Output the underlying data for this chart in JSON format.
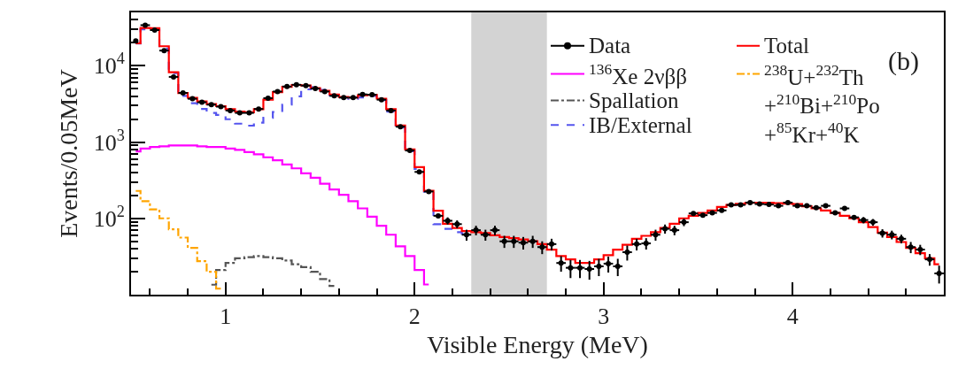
{
  "chart_data": {
    "type": "step",
    "xlabel": "Visible Energy (MeV)",
    "ylabel": "Events/0.05MeV",
    "annotations": [
      "(b)"
    ],
    "log": "y",
    "grid": false,
    "legend": "top right",
    "xlim": [
      0.5,
      4.8
    ],
    "xticks": [
      {
        "value": 0.6,
        "label": null
      },
      {
        "value": 0.8,
        "label": null
      },
      1,
      {
        "value": 1.2,
        "label": null
      },
      {
        "value": 1.4,
        "label": null
      },
      {
        "value": 1.6,
        "label": null
      },
      {
        "value": 1.8,
        "label": null
      },
      2,
      {
        "value": 2.2,
        "label": null
      },
      {
        "value": 2.4,
        "label": null
      },
      {
        "value": 2.6,
        "label": null
      },
      {
        "value": 2.8,
        "label": null
      },
      3,
      {
        "value": 3.2,
        "label": null
      },
      {
        "value": 3.4,
        "label": null
      },
      {
        "value": 3.6,
        "label": null
      },
      {
        "value": 3.8,
        "label": null
      },
      4,
      {
        "value": 4.2,
        "label": null
      },
      {
        "value": 4.4,
        "label": null
      },
      {
        "value": 4.6,
        "label": null
      }
    ],
    "ylim": [
      10,
      50000
    ],
    "yticks": [
      {
        "value": 20,
        "label": null
      },
      {
        "value": 30,
        "label": null
      },
      {
        "value": 40,
        "label": null
      },
      {
        "value": 50,
        "label": null
      },
      {
        "value": 60,
        "label": null
      },
      {
        "value": 70,
        "label": null
      },
      {
        "value": 80,
        "label": null
      },
      {
        "value": 90,
        "label": null
      },
      {
        "value": 100,
        "label": "10$^{2}$"
      },
      {
        "value": 200,
        "label": null
      },
      {
        "value": 300,
        "label": null
      },
      {
        "value": 400,
        "label": null
      },
      {
        "value": 500,
        "label": null
      },
      {
        "value": 600,
        "label": null
      },
      {
        "value": 700,
        "label": null
      },
      {
        "value": 800,
        "label": null
      },
      {
        "value": 900,
        "label": null
      },
      {
        "value": 1000,
        "label": "10$^{3}$"
      },
      {
        "value": 2000,
        "label": null
      },
      {
        "value": 3000,
        "label": null
      },
      {
        "value": 4000,
        "label": null
      },
      {
        "value": 5000,
        "label": null
      },
      {
        "value": 6000,
        "label": null
      },
      {
        "value": 7000,
        "label": null
      },
      {
        "value": 8000,
        "label": null
      },
      {
        "value": 9000,
        "label": null
      },
      {
        "value": 10000,
        "label": "10$^{4}$"
      },
      {
        "value": 20000,
        "label": null
      },
      {
        "value": 30000,
        "label": null
      },
      {
        "value": 40000,
        "label": null
      }
    ],
    "bands": [
      {
        "axis": "x",
        "from": 2.3,
        "to": 2.7,
        "color": "#d3d3d3"
      }
    ],
    "series": [
      {
        "name": "Data",
        "type": "scatter",
        "marker": "circle",
        "color": "#000000",
        "x": [
          0.525,
          0.575,
          0.625,
          0.675,
          0.725,
          0.775,
          0.825,
          0.875,
          0.925,
          0.975,
          1.025,
          1.075,
          1.125,
          1.175,
          1.225,
          1.275,
          1.325,
          1.375,
          1.425,
          1.475,
          1.525,
          1.575,
          1.625,
          1.675,
          1.725,
          1.775,
          1.825,
          1.875,
          1.925,
          1.975,
          2.025,
          2.075,
          2.125,
          2.175,
          2.225,
          2.275,
          2.325,
          2.375,
          2.425,
          2.475,
          2.525,
          2.575,
          2.625,
          2.675,
          2.725,
          2.775,
          2.825,
          2.875,
          2.925,
          2.975,
          3.025,
          3.075,
          3.125,
          3.175,
          3.225,
          3.275,
          3.325,
          3.375,
          3.425,
          3.475,
          3.525,
          3.575,
          3.625,
          3.675,
          3.725,
          3.775,
          3.825,
          3.875,
          3.925,
          3.975,
          4.025,
          4.075,
          4.125,
          4.175,
          4.225,
          4.275,
          4.325,
          4.375,
          4.425,
          4.475,
          4.525,
          4.575,
          4.625,
          4.675,
          4.725,
          4.775
        ],
        "values": [
          21100,
          34000,
          29300,
          15800,
          7140,
          4400,
          3690,
          3320,
          3090,
          2910,
          2590,
          2410,
          2410,
          2710,
          3760,
          4590,
          5340,
          5630,
          5490,
          5020,
          4590,
          4030,
          3820,
          3820,
          4210,
          4170,
          3590,
          2590,
          1590,
          774,
          406,
          225,
          108,
          93,
          84,
          61,
          70,
          61,
          70,
          50,
          50,
          48,
          50,
          42,
          46,
          26,
          22.5,
          22.5,
          21.7,
          23.5,
          25.5,
          23.5,
          36,
          46,
          47,
          61,
          73,
          70,
          89,
          116,
          110,
          118,
          127,
          150,
          150,
          161,
          154,
          152,
          146,
          161,
          146,
          146,
          138,
          146,
          118,
          135,
          103,
          95,
          89,
          64,
          61,
          54,
          42,
          39,
          29,
          19
        ],
        "errors": [
          null,
          null,
          null,
          null,
          null,
          null,
          null,
          null,
          null,
          null,
          null,
          null,
          null,
          null,
          null,
          null,
          null,
          null,
          null,
          null,
          null,
          null,
          null,
          null,
          null,
          null,
          null,
          null,
          null,
          null,
          null,
          null,
          null,
          10,
          10,
          10,
          10,
          10,
          10,
          9,
          9,
          9,
          9,
          8,
          8,
          6,
          6,
          6,
          6,
          6,
          6,
          6,
          8,
          8,
          8,
          10,
          10,
          10,
          10,
          null,
          null,
          null,
          null,
          null,
          null,
          null,
          null,
          null,
          null,
          null,
          null,
          null,
          null,
          null,
          null,
          null,
          null,
          9,
          9,
          8,
          8,
          7,
          7,
          6,
          5,
          5
        ],
        "xerrors": [
          null,
          0.025,
          0.025,
          0.025,
          0.025,
          0.025,
          0.025,
          0.025,
          0.025,
          0.025,
          0.025,
          0.025,
          0.025,
          0.025,
          0.025,
          0.025,
          0.025,
          0.025,
          0.025,
          0.025,
          0.025,
          0.025,
          0.025,
          0.025,
          0.025,
          0.025,
          0.025,
          0.025,
          0.025,
          0.025,
          0.025,
          0.025,
          0.025,
          0.025,
          0.025,
          0.025,
          0.025,
          0.025,
          0.025,
          0.025,
          0.025,
          0.025,
          0.025,
          0.025,
          0.025,
          0.025,
          0.025,
          0.025,
          0.025,
          0.025,
          0.025,
          0.025,
          0.025,
          0.025,
          0.025,
          0.025,
          0.025,
          0.025,
          0.025,
          0.025,
          0.025,
          0.025,
          0.025,
          0.025,
          0.025,
          0.025,
          0.025,
          0.025,
          0.025,
          0.025,
          0.025,
          0.025,
          0.025,
          0.025,
          0.025,
          0.025,
          0.025,
          0.025,
          0.025,
          0.025,
          0.025,
          0.025,
          0.025,
          0.025,
          0.025,
          0.025
        ]
      },
      {
        "name": "$^{136}$Xe 2νββ",
        "color": "#ff00ff",
        "line_style": "solid",
        "x": [
          0.525,
          0.575,
          0.625,
          0.675,
          0.725,
          0.775,
          0.825,
          0.875,
          0.925,
          0.975,
          1.025,
          1.075,
          1.125,
          1.175,
          1.225,
          1.275,
          1.325,
          1.375,
          1.425,
          1.475,
          1.525,
          1.575,
          1.625,
          1.675,
          1.725,
          1.775,
          1.825,
          1.875,
          1.925,
          1.975,
          2.025,
          2.075
        ],
        "values": [
          754,
          822,
          860,
          880,
          900,
          900,
          900,
          880,
          860,
          860,
          822,
          789,
          740,
          690,
          631,
          578,
          507,
          452,
          389,
          341,
          285,
          239,
          204,
          168,
          135,
          105,
          80,
          61,
          43,
          32,
          21,
          13.6
        ]
      },
      {
        "name": "Spallation",
        "color": "#555555",
        "line_style": "dashdot",
        "x": [
          0.925,
          0.975,
          1.025,
          1.075,
          1.125,
          1.175,
          1.225,
          1.275,
          1.325,
          1.375,
          1.425,
          1.475,
          1.525,
          1.575
        ],
        "values": [
          13.5,
          21,
          26,
          30,
          31,
          32,
          31,
          30,
          28,
          25,
          23,
          20,
          16,
          13
        ]
      },
      {
        "name": "IB/External",
        "color": "#5555ee",
        "line_style": "dashed",
        "x": [
          0.525,
          0.575,
          0.625,
          0.675,
          0.725,
          0.775,
          0.825,
          0.875,
          0.925,
          0.975,
          1.025,
          1.075,
          1.125,
          1.175,
          1.225,
          1.275,
          1.325,
          1.375,
          1.425,
          1.475,
          1.525,
          1.575,
          1.625,
          1.675,
          1.725,
          1.775,
          1.825,
          1.875,
          1.925,
          1.975,
          2.025,
          2.075,
          2.125,
          2.175,
          2.225,
          2.275
        ],
        "values": [
          19500,
          30000,
          29300,
          16800,
          8000,
          4030,
          3230,
          2710,
          2410,
          2270,
          1990,
          1740,
          1640,
          1790,
          2080,
          2480,
          3090,
          3960,
          4900,
          5250,
          4810,
          4100,
          3850,
          3690,
          3850,
          4030,
          3550,
          2500,
          1550,
          760,
          444,
          223,
          84,
          73,
          66,
          63
        ]
      },
      {
        "name": "Total",
        "color": "#ff0000",
        "line_style": "solid",
        "x": [
          0.525,
          0.575,
          0.625,
          0.675,
          0.725,
          0.775,
          0.825,
          0.875,
          0.925,
          0.975,
          1.025,
          1.075,
          1.125,
          1.175,
          1.225,
          1.275,
          1.325,
          1.375,
          1.425,
          1.475,
          1.525,
          1.575,
          1.625,
          1.675,
          1.725,
          1.775,
          1.825,
          1.875,
          1.925,
          1.975,
          2.025,
          2.075,
          2.125,
          2.175,
          2.225,
          2.275,
          2.325,
          2.375,
          2.425,
          2.475,
          2.525,
          2.575,
          2.625,
          2.675,
          2.725,
          2.775,
          2.825,
          2.875,
          2.925,
          2.975,
          3.025,
          3.075,
          3.125,
          3.175,
          3.225,
          3.275,
          3.325,
          3.375,
          3.425,
          3.475,
          3.525,
          3.575,
          3.625,
          3.675,
          3.725,
          3.775,
          3.825,
          3.875,
          3.925,
          3.975,
          4.025,
          4.075,
          4.125,
          4.175,
          4.225,
          4.275,
          4.325,
          4.375,
          4.425,
          4.475,
          4.525,
          4.575,
          4.625,
          4.675,
          4.725,
          4.775
        ],
        "values": [
          19700,
          31200,
          31000,
          18000,
          8200,
          4400,
          3800,
          3400,
          3150,
          2950,
          2700,
          2500,
          2450,
          2700,
          3600,
          4500,
          5300,
          5600,
          5500,
          5100,
          4700,
          4200,
          3900,
          3850,
          4100,
          4150,
          3700,
          2700,
          1650,
          800,
          470,
          230,
          126,
          85,
          75,
          68,
          66,
          64,
          60,
          57,
          55,
          53,
          50,
          46,
          39,
          32,
          29,
          26,
          26,
          29,
          33,
          39,
          45,
          54,
          59,
          66,
          75,
          85,
          100,
          108,
          118,
          127,
          141,
          150,
          155,
          160,
          160,
          160,
          158,
          156,
          154,
          144,
          135,
          127,
          118,
          108,
          100,
          89,
          77,
          65,
          57,
          49,
          41,
          35,
          30,
          25
        ]
      },
      {
        "name": "$^{238}$U+$^{232}$Th\n+$^{210}$Bi+$^{210}$Po\n+$^{85}$Kr+$^{40}$K",
        "color": "#ffa500",
        "line_style": "dashdot",
        "x": [
          0.525,
          0.575,
          0.625,
          0.675,
          0.725,
          0.775,
          0.825,
          0.875,
          0.925,
          0.975
        ],
        "values": [
          229,
          168,
          131,
          100,
          72,
          56,
          41,
          27.5,
          20,
          12
        ]
      }
    ]
  }
}
